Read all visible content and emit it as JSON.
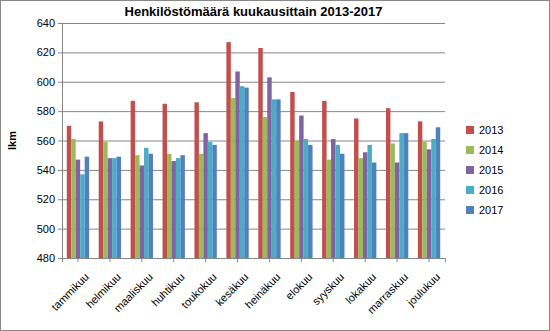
{
  "chart_data": {
    "type": "bar",
    "title": "Henkilöstömäärä kuukausittain 2013-2017",
    "y_label": "lkm",
    "categories": [
      "tammikuu",
      "helmikuu",
      "maaliskuu",
      "huhtikuu",
      "toukokuu",
      "kesäkuu",
      "heinäkuu",
      "elokuu",
      "syyskuu",
      "lokakuu",
      "marraskuu",
      "joulukuu"
    ],
    "series": [
      {
        "name": "2013",
        "color": "#c0504d",
        "values": [
          570,
          573,
          587,
          585,
          586,
          627,
          623,
          593,
          587,
          575,
          582,
          573
        ]
      },
      {
        "name": "2014",
        "color": "#9bbb59",
        "values": [
          561,
          559,
          550,
          551,
          551,
          589,
          576,
          560,
          547,
          548,
          558,
          559
        ]
      },
      {
        "name": "2015",
        "color": "#8064a2",
        "values": [
          547,
          548,
          543,
          546,
          565,
          607,
          603,
          577,
          561,
          552,
          545,
          554
        ]
      },
      {
        "name": "2016",
        "color": "#4bacc6",
        "values": [
          537,
          548,
          555,
          548,
          559,
          597,
          588,
          561,
          557,
          557,
          565,
          561
        ]
      },
      {
        "name": "2017",
        "color": "#4f81bd",
        "values": [
          549,
          549,
          551,
          550,
          557,
          596,
          588,
          557,
          551,
          545,
          565,
          569
        ]
      }
    ],
    "ylim": [
      480,
      640
    ],
    "yticks": [
      480,
      500,
      520,
      540,
      560,
      580,
      600,
      620,
      640
    ],
    "grid": true,
    "legend": "right"
  }
}
